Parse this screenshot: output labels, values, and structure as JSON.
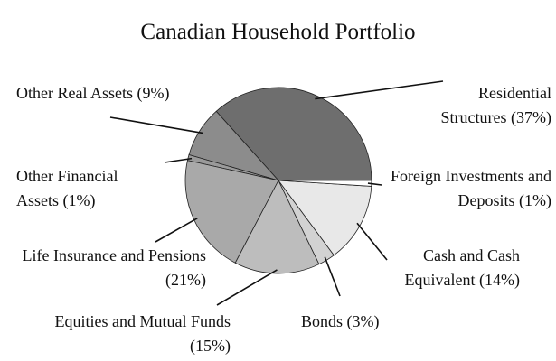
{
  "chart_data": {
    "type": "pie",
    "title": "Canadian Household Portfolio",
    "categories": [
      "Residential Structures",
      "Other Real Assets",
      "Other Financial Assets",
      "Life Insurance and Pensions",
      "Equities and Mutual Funds",
      "Bonds",
      "Cash and Cash Equivalent",
      "Foreign Investments and Deposits"
    ],
    "values": [
      37,
      9,
      1,
      21,
      15,
      3,
      14,
      1
    ],
    "value_labels": [
      "(37%)",
      "(9%)",
      "(1%)",
      "(21%)",
      "(15%)",
      "(3%)",
      "(14%)",
      "(1%)"
    ],
    "colors": [
      "#6e6e6e",
      "#8c8c8c",
      "#9a9a9a",
      "#a9a9a9",
      "#bdbdbd",
      "#d2d2d2",
      "#e8e8e8",
      "#ffffff"
    ]
  }
}
